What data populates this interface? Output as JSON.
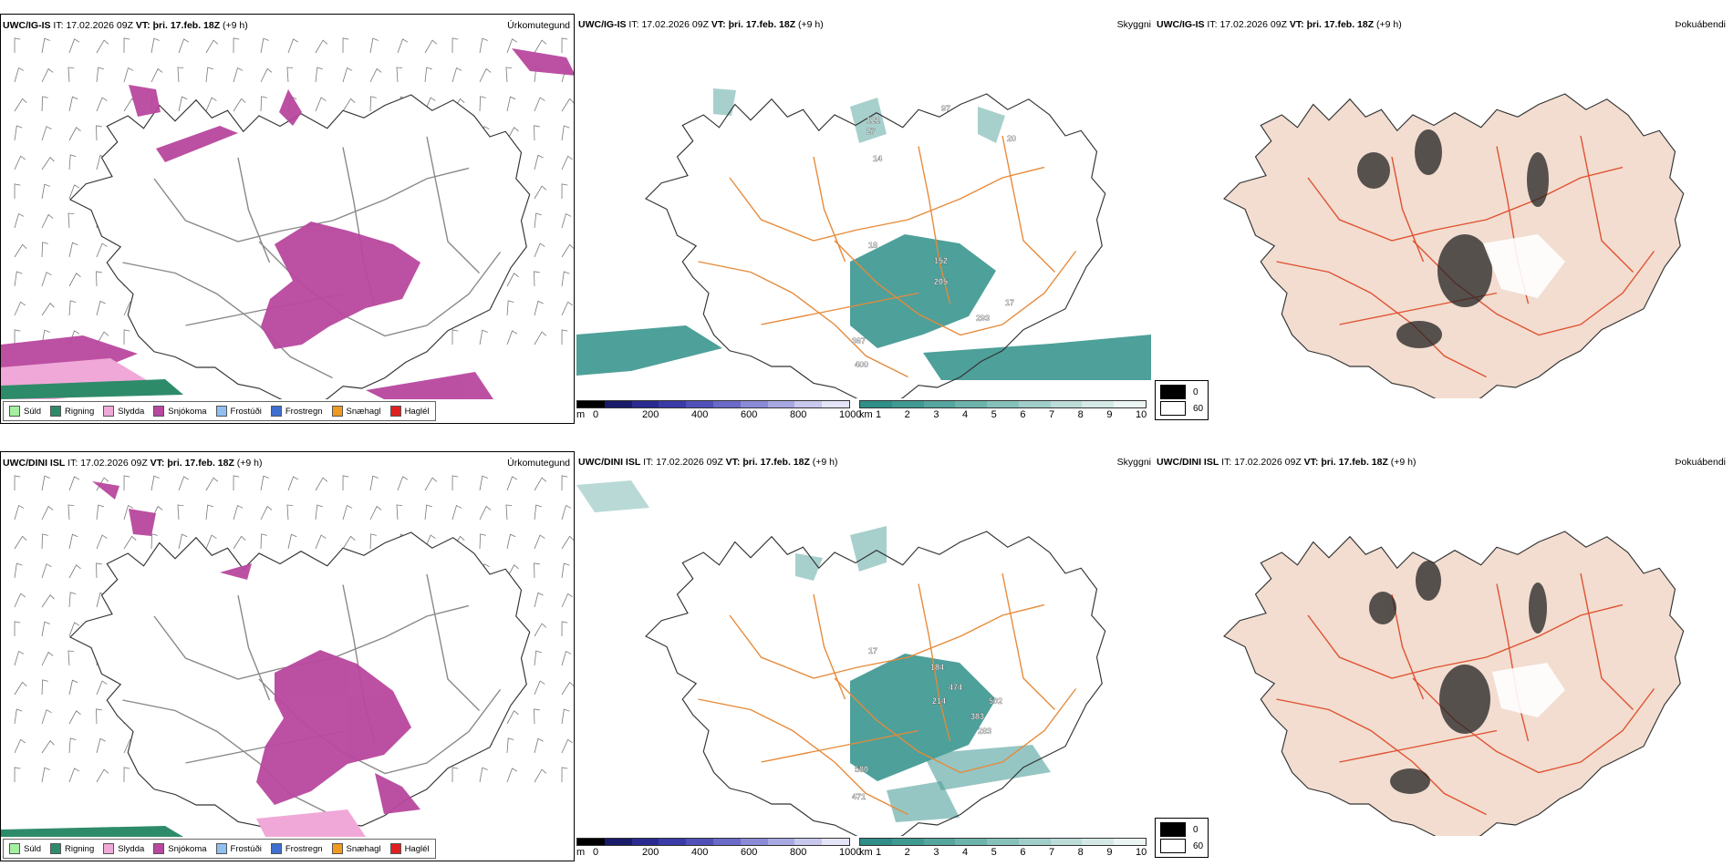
{
  "colors": {
    "sprinkle": "#a4f0a0",
    "rain": "#2e8b6a",
    "sleet": "#f0a8d8",
    "snow": "#b8479e",
    "frost_drizzle": "#8ec0f0",
    "frost_rain": "#3f6fd0",
    "snow_grain": "#f09a20",
    "hail": "#e02020",
    "vis_teal": "#2f8f88",
    "road_orange": "#e68a3a",
    "fog_land": "#f2ddd0",
    "coast": "#333333"
  },
  "rows": [
    {
      "model": "UWC/IG-IS",
      "it_label": "IT:",
      "it_value": "17.02.2026 09Z",
      "vt_label": "VT:",
      "vt_value": "þri. 17.feb. 18Z",
      "lead": "(+9 h)",
      "labels_vis": [
        "121",
        "27",
        "97",
        "20",
        "14",
        "18",
        "152",
        "205",
        "17",
        "293",
        "367",
        "400"
      ]
    },
    {
      "model": "UWC/DINI ISL",
      "it_label": "IT:",
      "it_value": "17.02.2026 09Z",
      "vt_label": "VT:",
      "vt_value": "þri. 17.feb. 18Z",
      "lead": "(+9 h)",
      "labels_vis": [
        "17",
        "184",
        "474",
        "214",
        "502",
        "383",
        "283",
        "580",
        "471"
      ]
    }
  ],
  "titles": {
    "precip": "Úrkomutegund",
    "visibility": "Skyggni",
    "fog": "Þokuábendi"
  },
  "precip_legend": [
    {
      "label": "Súld",
      "color_key": "sprinkle"
    },
    {
      "label": "Rigning",
      "color_key": "rain"
    },
    {
      "label": "Slydda",
      "color_key": "sleet"
    },
    {
      "label": "Snjókoma",
      "color_key": "snow"
    },
    {
      "label": "Frostúði",
      "color_key": "frost_drizzle"
    },
    {
      "label": "Frostregn",
      "color_key": "frost_rain"
    },
    {
      "label": "Snæhagl",
      "color_key": "snow_grain"
    },
    {
      "label": "Haglél",
      "color_key": "hail"
    }
  ],
  "height_colorbar": {
    "unit": "m",
    "ticks": [
      "0",
      "200",
      "400",
      "600",
      "800",
      "1000"
    ]
  },
  "vis_colorbar": {
    "unit": "km",
    "ticks": [
      "1",
      "2",
      "3",
      "4",
      "5",
      "6",
      "7",
      "8",
      "9",
      "10"
    ]
  },
  "fog_legend": {
    "values": [
      "0",
      "60"
    ]
  }
}
